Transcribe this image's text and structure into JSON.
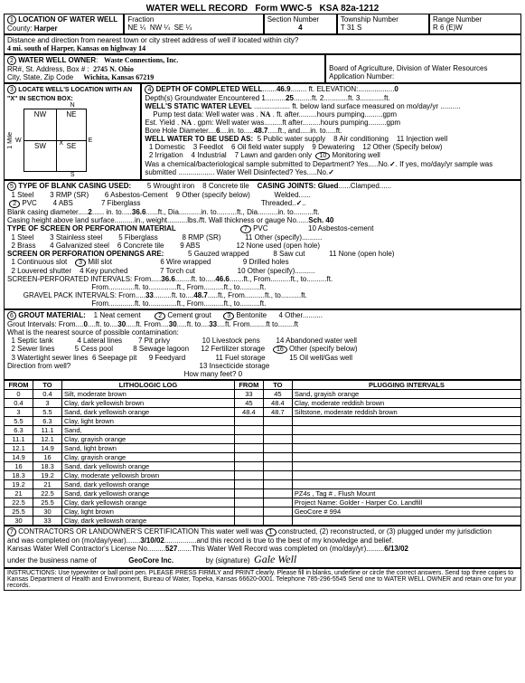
{
  "form": {
    "title": "WATER WELL RECORD",
    "formNo": "Form WWC-5",
    "ksa": "KSA 82a-1212"
  },
  "s1": {
    "label": "LOCATION OF WATER WELL",
    "county": "Harper",
    "fraction": {
      "ne": "NE ¼",
      "nw": "NW ¼",
      "se": "SE ¼"
    },
    "sectionNo": "4",
    "township": "T    31    S",
    "range": "R    6    (E)W",
    "distLabel": "Distance and direction from nearest town or city street address of well if located within city?",
    "dist": "4 mi. south of Harper, Kansas on highway 14"
  },
  "s2": {
    "label": "WATER WELL OWNER",
    "name": "Waste Connections, Inc.",
    "addr": "2745 N. Ohio",
    "csz": "Wichita, Kansas   67219",
    "board": "Board of Agriculture, Division of Water Resources",
    "appNo": "Application Number:"
  },
  "s3": {
    "label": "LOCATE WELL'S LOCATION WITH AN \"X\" IN SECTION BOX:",
    "nw": "NW",
    "ne": "NE",
    "sw": "SW",
    "se": "SE",
    "mile": "1 Mile",
    "n": "N",
    "e": "E",
    "s": "S",
    "w": "W",
    "x": "X"
  },
  "s4": {
    "label": "DEPTH OF COMPLETED WELL",
    "depth": "46.9",
    "depthUnit": "ft.  ELEVATION:",
    "elev": "0",
    "gw": "Depth(s) Groundwater Encountered   1.",
    "gw1": "25",
    "gw2": "ft.   2.",
    "gw3": "ft.   3.",
    "gw4": "ft.",
    "static": "WELL'S STATIC WATER LEVEL",
    "staticTxt": "ft. below land surface measured on mo/day/yr",
    "pump": "Pump test data:  Well water was",
    "pumpTxt": "ft. after",
    "pumpHrs": "hours pumping",
    "gpm": "gpm",
    "est": "Est. Yield",
    "estNA": "NA",
    "estGpm": "gpm:  Well water was",
    "estTxt": "ft after",
    "estHrs": "hours pumping",
    "estGpm2": "gpm",
    "bore": "Bore Hole Diameter",
    "bore1": "6",
    "bore2": "in. to",
    "bore3": "48.7",
    "bore4": "ft., and",
    "bore5": "in. to",
    "bore6": "ft.",
    "use": "WELL WATER TO BE USED AS:",
    "u5": "5  Public water supply",
    "u8": "8  Air conditioning",
    "u11": "11  Injection well",
    "u1": "1  Domestic",
    "u3b": "3  Feedlot",
    "u6": "6  Oil field water supply",
    "u9": "9  Dewatering",
    "u12": "12  Other (Specify below)",
    "u2": "2  Irrigation",
    "u4": "4  Industrial",
    "u7": "7  Lawn and garden only",
    "u10": "Monitoring well",
    "chem": "Was a chemical/bacteriological sample submitted to Department? Yes",
    "no": "No",
    "chem2": "If yes, mo/day/yr sample was",
    "sub": "submitted",
    "disinfect": "Water Well Disinfected?  Yes",
    "no2": "No"
  },
  "s5": {
    "label": "TYPE OF BLANK CASING USED:",
    "c1": "1  Steel",
    "c3": "3  RMP (SR)",
    "c5": "5  Wrought iron",
    "c8": "8  Concrete tile",
    "joints": "CASING JOINTS: Glued",
    "clamp": "Clamped",
    "c2": "PVC",
    "c4": "4  ABS",
    "c6": "6  Asbestos-Cement",
    "c9": "9  Other (specify below)",
    "weld": "Welded",
    "thread": "Threaded",
    "c7": "7  Fiberglass",
    "dia": "Blank casing diameter",
    "d1": "2",
    "d2": "in. to",
    "d3": "36.6",
    "d4": "ft., Dia.",
    "d5": "in. to",
    "d6": "ft., Dia",
    "d7": "in. to",
    "d8": "ft.",
    "ht": "Casing height above land surface",
    "htIn": "in., weight",
    "htLbs": "lbs./ft. Wall thickness or gauge No.",
    "sch": "Sch. 40",
    "screen": "TYPE OF SCREEN OR PERFORATION MATERIAL",
    "s7": "PVC",
    "s10": "10  Asbestos-cement",
    "ss1": "1  Steel",
    "ss3": "3  Stainless steel",
    "ss5": "5  Fiberglass",
    "ss8": "8  RMP (SR)",
    "ss11": "11  Other (specify)",
    "ss2": "2  Brass",
    "ss4": "4  Galvanized steel",
    "ss6": "6  Concrete tile",
    "ss9": "9  ABS",
    "ss12": "12  None used (open hole)",
    "open": "SCREEN OR PERFORATION OPENINGS ARE:",
    "o5": "5  Gauzed wrapped",
    "o8": "8  Saw cut",
    "o11": "11  None (open hole)",
    "o1": "1  Continuous slot",
    "o3": "Mill slot",
    "o6": "6  Wire wrapped",
    "o9": "9  Drilled holes",
    "o2": "2  Louvered shutter",
    "o4": "4  Key punched",
    "o7": "7  Torch cut",
    "o10": "10  Other (specify)",
    "perf": "SCREEN-PERFORATED INTERVALS:  From",
    "p1": "36.6",
    "pto": "ft. to",
    "p2": "46.6",
    "pft": "ft., From",
    "pft2": "ft., to",
    "pft3": "ft.",
    "from": "From",
    "grav": "GRAVEL PACK INTERVALS:   From",
    "g1": "33",
    "g2": "48.7"
  },
  "s6": {
    "label": "GROUT MATERIAL:",
    "g1": "1  Neat cement",
    "g2": "Cement grout",
    "g3": "Bentonite",
    "g4": "4  Other",
    "int": "Grout Intervals:   From",
    "i1": "0",
    "i2": "ft. to",
    "i3": "30",
    "i4": "ft.   From",
    "i5": "30",
    "i6": "ft. to",
    "i7": "33",
    "i8": "ft.  From",
    "i9": "ft  to",
    "i10": "ft",
    "src": "What is the nearest source of possible contamination:",
    "c1": "1  Septic tank",
    "c4": "4  Lateral lines",
    "c7": "7  Pit privy",
    "c10": "10  Livestock pens",
    "c14": "14  Abandoned water well",
    "c2": "2  Sewer lines",
    "c5": "5  Cess pool",
    "c8": "8  Sewage lagoon",
    "c12": "12  Fertilizer storage",
    "c16": "Other (specify below)",
    "c3": "3  Watertight sewer lines",
    "c6": "6  Seepage pit",
    "c9": "9  Feedyard",
    "c11": "11  Fuel storage",
    "c15": "15  Oil well/Gas well",
    "c13": "13  Insecticide storage",
    "dir": "Direction from well?",
    "feet": "How many feet?   0"
  },
  "log": {
    "hdr": [
      "FROM",
      "TO",
      "LITHOLOGIC LOG",
      "FROM",
      "TO",
      "PLUGGING INTERVALS"
    ],
    "rows": [
      [
        "0",
        "0.4",
        "Silt, moderate brown",
        "33",
        "45",
        "Sand, grayish orange"
      ],
      [
        "0.4",
        "3",
        "Clay, dark yellowish brown",
        "45",
        "48.4",
        "Clay, moderate reddish brown"
      ],
      [
        "3",
        "5.5",
        "Sand, dark yellowish orange",
        "48.4",
        "48.7",
        "Siltstone, moderate reddish brown"
      ],
      [
        "5.5",
        "6.3",
        "Clay, light brown",
        "",
        "",
        ""
      ],
      [
        "6.3",
        "11.1",
        "Sand,",
        "",
        "",
        ""
      ],
      [
        "11.1",
        "12.1",
        "Clay, grayish orange",
        "",
        "",
        ""
      ],
      [
        "12.1",
        "14.9",
        "Sand, light brown",
        "",
        "",
        ""
      ],
      [
        "14.9",
        "16",
        "Clay, grayish orange",
        "",
        "",
        ""
      ],
      [
        "16",
        "18.3",
        "Sand, dark yellowish orange",
        "",
        "",
        ""
      ],
      [
        "18.3",
        "19.2",
        "Clay, moderate yellowish brown",
        "",
        "",
        ""
      ],
      [
        "19.2",
        "21",
        "Sand, dark yellowish orange",
        "",
        "",
        ""
      ],
      [
        "21",
        "22.5",
        "Sand, dark yellowish orange",
        "",
        "",
        "PZ4s , Tag # , Flush Mount"
      ],
      [
        "22.5",
        "25.5",
        "Clay, dark yellowish orange",
        "",
        "",
        "Project Name: Golder - Harper Co. Landfill"
      ],
      [
        "25.5",
        "30",
        "Clay, light brown",
        "",
        "",
        "GeoCore # 994"
      ],
      [
        "30",
        "33",
        "Clay, dark yellowish orange",
        "",
        "",
        ""
      ]
    ]
  },
  "s7": {
    "label": "CONTRACTORS OR LANDOWNER'S CERTIFICATION   This water well was",
    "c1": "constructed, (2) reconstructed, or (3) plugged under my jurisdiction",
    "l2": "and was completed on (mo/day/year)",
    "date1": "3/10/02",
    "l3": "and this record is true to the best of my knowledge and belief.",
    "l4": "Kansas Water Well Contractor's License No.",
    "lic": "527",
    "l5": "This Water Well Record was completed on (mo/day/yr)",
    "date2": "6/13/02",
    "l6": "under the business name of",
    "biz": "GeoCore Inc.",
    "by": "by (signature)",
    "sig": "[signature]"
  },
  "instr": "INSTRUCTIONS:  Use typewriter or ball point pen. PLEASE PRESS FIRMLY and PRINT clearly.  Please fill in blanks, underline or circle the correct answers.  Send top three copies to Kansas Department of Health and Environment, Bureau of Water, Topeka, Kansas 66620-0001.  Telephone 785-296-5545  Send one to WATER WELL OWNER and retain one for your records."
}
